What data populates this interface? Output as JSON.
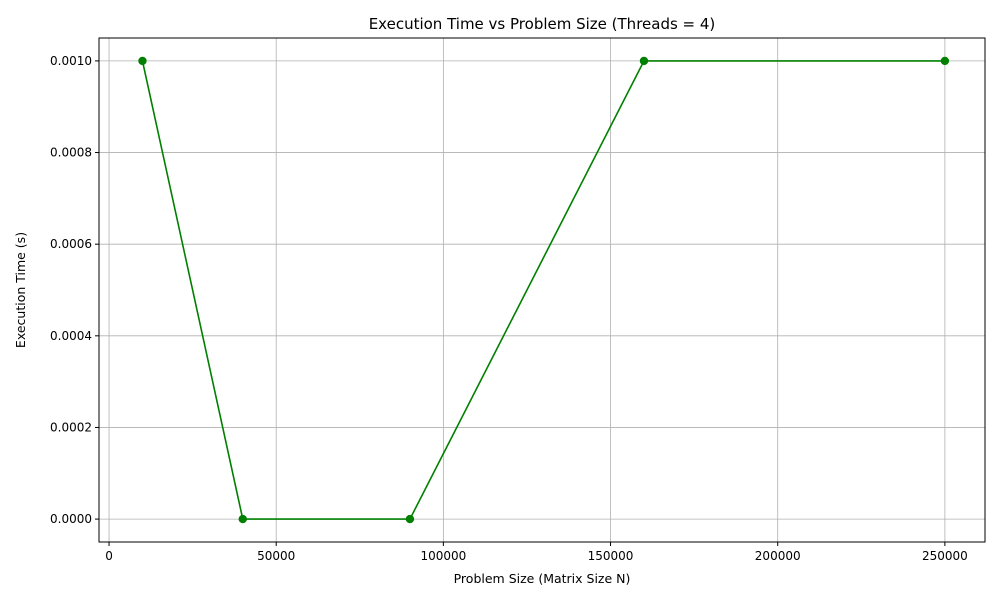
{
  "chart_data": {
    "type": "line",
    "title": "Execution Time vs Problem Size (Threads = 4)",
    "xlabel": "Problem Size (Matrix Size N)",
    "ylabel": "Execution Time (s)",
    "xlim": [
      -3000,
      262000
    ],
    "ylim": [
      -5e-05,
      0.00105
    ],
    "xticks": [
      0,
      50000,
      100000,
      150000,
      200000,
      250000
    ],
    "xtick_labels": [
      "0",
      "50000",
      "100000",
      "150000",
      "200000",
      "250000"
    ],
    "yticks": [
      0,
      0.0002,
      0.0004,
      0.0006,
      0.0008,
      0.001
    ],
    "ytick_labels": [
      "0.0000",
      "0.0002",
      "0.0004",
      "0.0006",
      "0.0008",
      "0.0010"
    ],
    "grid": true,
    "series": [
      {
        "color": "#008000",
        "marker": "circle",
        "x": [
          10000,
          40000,
          90000,
          160000,
          250000
        ],
        "y": [
          0.001,
          0.0,
          0.0,
          0.001,
          0.001
        ]
      }
    ]
  }
}
